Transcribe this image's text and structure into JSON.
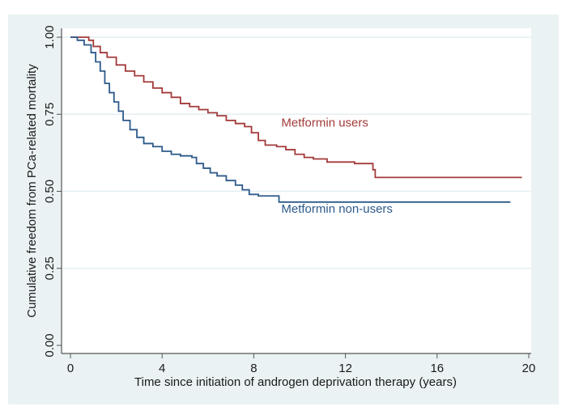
{
  "chart_data": {
    "type": "line",
    "subtype": "kaplan-meier step",
    "title": "",
    "xlabel": "Time since initiation of androgen deprivation therapy (years)",
    "ylabel": "Cumulative freedom from PCa-related mortality",
    "xlim": [
      0,
      20
    ],
    "ylim": [
      0,
      1
    ],
    "xticks": [
      0,
      4,
      8,
      12,
      16,
      20
    ],
    "xtick_labels": [
      "0",
      "4",
      "8",
      "12",
      "16",
      "20"
    ],
    "yticks": [
      0,
      0.25,
      0.5,
      0.75,
      1.0
    ],
    "ytick_labels": [
      "0.00",
      "0.25",
      "0.50",
      "0.75",
      "1.00"
    ],
    "grid": "horizontal",
    "legend": "none (inline annotations)",
    "series": [
      {
        "name": "Metformin users",
        "color": "#a33a3a",
        "annotation": {
          "text": "Metformin users",
          "x": 9.2,
          "y": 0.71
        },
        "points": [
          [
            0,
            1.0
          ],
          [
            0.6,
            1.0
          ],
          [
            0.8,
            0.99
          ],
          [
            1.0,
            0.97
          ],
          [
            1.3,
            0.95
          ],
          [
            1.6,
            0.935
          ],
          [
            2.0,
            0.91
          ],
          [
            2.4,
            0.89
          ],
          [
            2.8,
            0.875
          ],
          [
            3.2,
            0.855
          ],
          [
            3.6,
            0.835
          ],
          [
            4.0,
            0.82
          ],
          [
            4.4,
            0.805
          ],
          [
            4.8,
            0.785
          ],
          [
            5.2,
            0.775
          ],
          [
            5.6,
            0.765
          ],
          [
            6.0,
            0.755
          ],
          [
            6.4,
            0.745
          ],
          [
            6.8,
            0.73
          ],
          [
            7.2,
            0.72
          ],
          [
            7.6,
            0.71
          ],
          [
            7.9,
            0.69
          ],
          [
            8.2,
            0.665
          ],
          [
            8.5,
            0.65
          ],
          [
            9.0,
            0.645
          ],
          [
            9.4,
            0.635
          ],
          [
            9.8,
            0.62
          ],
          [
            10.2,
            0.61
          ],
          [
            10.6,
            0.605
          ],
          [
            11.2,
            0.595
          ],
          [
            12.4,
            0.59
          ],
          [
            13.2,
            0.59
          ],
          [
            13.2,
            0.57
          ],
          [
            13.3,
            0.57
          ],
          [
            13.3,
            0.545
          ],
          [
            19.7,
            0.545
          ]
        ]
      },
      {
        "name": "Metformin non-users",
        "color": "#2d5a8a",
        "annotation": {
          "text": "Metformin non-users",
          "x": 9.2,
          "y": 0.43
        },
        "points": [
          [
            0,
            1.0
          ],
          [
            0.3,
            0.99
          ],
          [
            0.6,
            0.975
          ],
          [
            0.9,
            0.95
          ],
          [
            1.1,
            0.92
          ],
          [
            1.3,
            0.89
          ],
          [
            1.5,
            0.85
          ],
          [
            1.7,
            0.82
          ],
          [
            1.9,
            0.79
          ],
          [
            2.1,
            0.76
          ],
          [
            2.3,
            0.73
          ],
          [
            2.6,
            0.7
          ],
          [
            2.9,
            0.675
          ],
          [
            3.2,
            0.655
          ],
          [
            3.6,
            0.645
          ],
          [
            4.0,
            0.63
          ],
          [
            4.4,
            0.62
          ],
          [
            4.8,
            0.615
          ],
          [
            5.3,
            0.61
          ],
          [
            5.5,
            0.59
          ],
          [
            5.8,
            0.575
          ],
          [
            6.1,
            0.56
          ],
          [
            6.4,
            0.55
          ],
          [
            6.8,
            0.535
          ],
          [
            7.2,
            0.52
          ],
          [
            7.5,
            0.505
          ],
          [
            7.8,
            0.49
          ],
          [
            8.2,
            0.485
          ],
          [
            9.1,
            0.485
          ],
          [
            9.1,
            0.465
          ],
          [
            19.2,
            0.465
          ]
        ]
      }
    ]
  }
}
